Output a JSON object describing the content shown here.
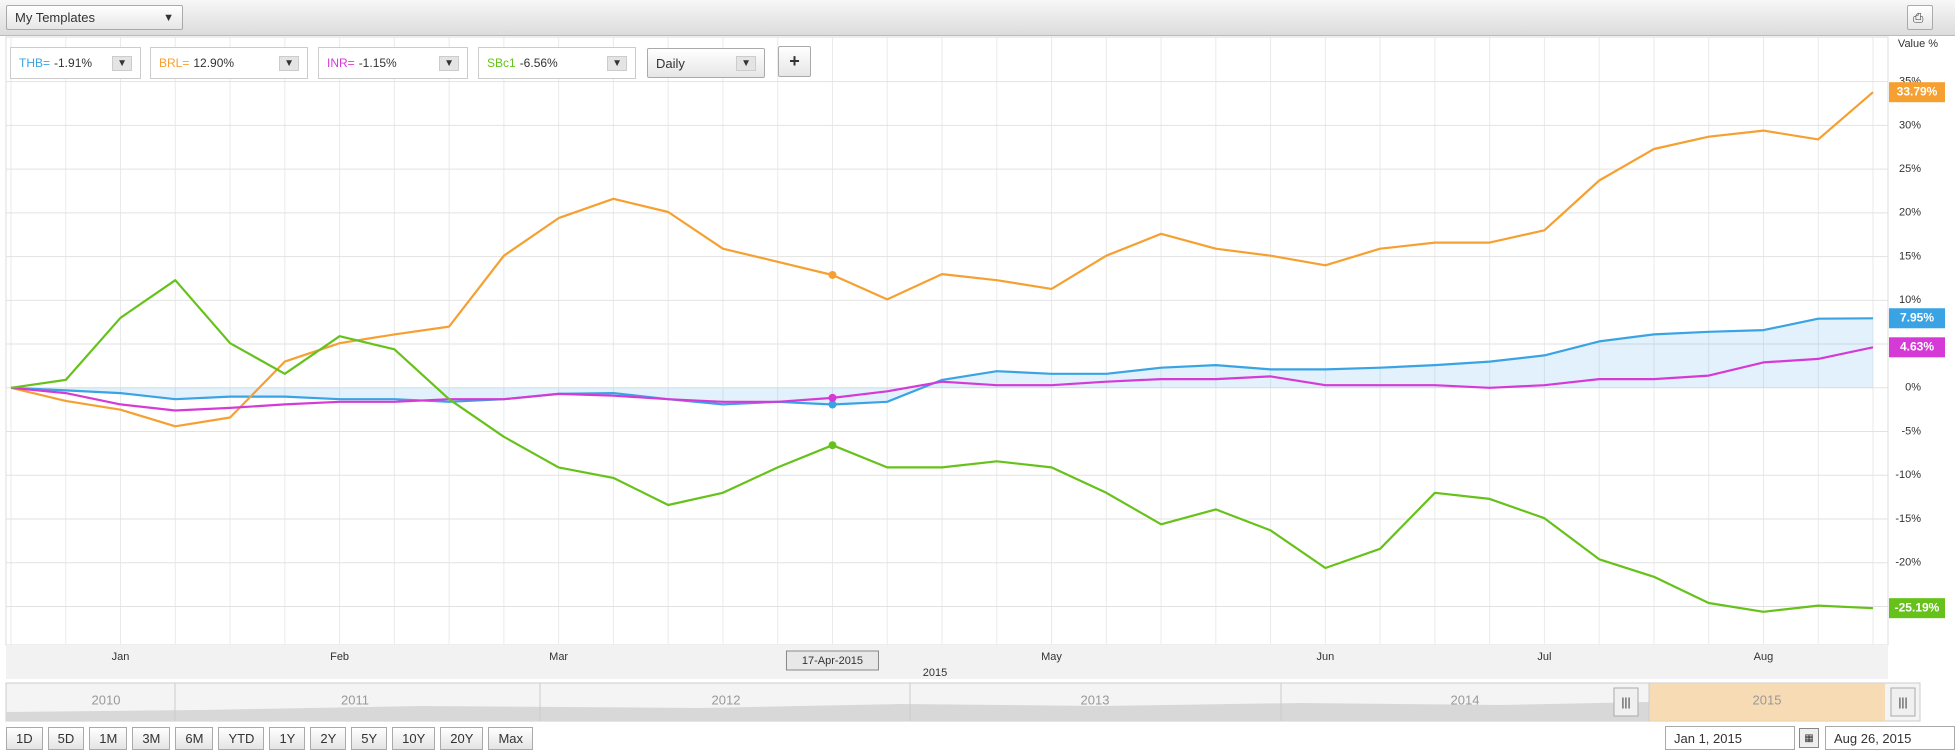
{
  "toolbar": {
    "template": "My Templates"
  },
  "controls": {
    "interval": "Daily",
    "add": "+"
  },
  "chart_data": {
    "type": "line",
    "y_axis_label": "Value %",
    "x_axis_label": "2015",
    "cursor_label": "17-Apr-2015",
    "categories": [
      null,
      null,
      "Jan",
      null,
      null,
      null,
      "Feb",
      null,
      null,
      null,
      "Mar",
      null,
      null,
      null,
      null,
      null,
      null,
      null,
      null,
      "May",
      null,
      null,
      null,
      null,
      "Jun",
      null,
      null,
      null,
      "Jul",
      null,
      null,
      null,
      "Aug",
      null,
      null
    ],
    "series": [
      {
        "name": "THB=",
        "color": "#3aa3e3",
        "legend_value": "-1.91%",
        "end_label": "7.95%",
        "area": true,
        "values": [
          0,
          -0.3,
          -0.6,
          -1.3,
          -1,
          -1,
          -1.3,
          -1.3,
          -1.6,
          -1.3,
          -0.7,
          -0.6,
          -1.3,
          -1.9,
          -1.6,
          -1.91,
          -1.6,
          0.9,
          1.9,
          1.6,
          1.6,
          2.3,
          2.6,
          2.1,
          2.1,
          2.3,
          2.6,
          3,
          3.7,
          5.3,
          6.1,
          6.4,
          6.6,
          7.9,
          7.95
        ]
      },
      {
        "name": "BRL=",
        "color": "#f5a030",
        "legend_value": "12.90%",
        "end_label": "33.79%",
        "values": [
          0,
          -1.5,
          -2.5,
          -4.4,
          -3.4,
          3,
          5.1,
          6.1,
          7,
          15.1,
          19.4,
          21.6,
          20.1,
          15.9,
          14.4,
          12.9,
          10.1,
          13,
          12.3,
          11.3,
          15.1,
          17.6,
          15.9,
          15.1,
          14,
          15.9,
          16.6,
          16.6,
          18,
          23.7,
          27.3,
          28.7,
          29.4,
          28.4,
          33.79
        ]
      },
      {
        "name": "INR=",
        "color": "#d63ad6",
        "legend_value": "-1.15%",
        "end_label": "4.63%",
        "values": [
          0,
          -0.6,
          -1.9,
          -2.6,
          -2.3,
          -1.9,
          -1.6,
          -1.6,
          -1.3,
          -1.3,
          -0.7,
          -0.9,
          -1.3,
          -1.6,
          -1.6,
          -1.15,
          -0.4,
          0.7,
          0.3,
          0.3,
          0.7,
          1,
          1,
          1.3,
          0.3,
          0.3,
          0.3,
          0,
          0.3,
          1,
          1,
          1.4,
          2.9,
          3.3,
          4.63
        ]
      },
      {
        "name": "SBc1",
        "color": "#66c21a",
        "legend_value": "-6.56%",
        "end_label": "-25.19%",
        "values": [
          0,
          0.9,
          8,
          12.3,
          5.1,
          1.6,
          5.9,
          4.4,
          -1.3,
          -5.6,
          -9.1,
          -10.3,
          -13.4,
          -12,
          -9.1,
          -6.56,
          -9.1,
          -9.1,
          -8.4,
          -9.1,
          -12,
          -15.6,
          -13.9,
          -16.3,
          -20.6,
          -18.4,
          -12,
          -12.7,
          -14.9,
          -19.6,
          -21.6,
          -24.6,
          -25.6,
          -24.9,
          -25.19
        ]
      }
    ],
    "ylim": [
      -29.4,
      40.1
    ],
    "yticks": [
      {
        "value": -25,
        "label": "-25%"
      },
      {
        "value": -20,
        "label": "-20%"
      },
      {
        "value": -15,
        "label": "-15%"
      },
      {
        "value": -10,
        "label": "-10%"
      },
      {
        "value": -5,
        "label": "-5%"
      },
      {
        "value": 0,
        "label": "0%"
      },
      {
        "value": 5,
        "label": "5%"
      },
      {
        "value": 10,
        "label": "10%"
      },
      {
        "value": 15,
        "label": "15%"
      },
      {
        "value": 20,
        "label": "20%"
      },
      {
        "value": 25,
        "label": "25%"
      },
      {
        "value": 30,
        "label": "30%"
      },
      {
        "value": 35,
        "label": "35%"
      }
    ],
    "grid": true
  },
  "navigator": {
    "years": [
      "2010",
      "2011",
      "2012",
      "2013",
      "2014",
      "2015"
    ]
  },
  "range_buttons": [
    "1D",
    "5D",
    "1M",
    "3M",
    "6M",
    "YTD",
    "1Y",
    "2Y",
    "5Y",
    "10Y",
    "20Y",
    "Max"
  ],
  "date_range": {
    "from": "Jan 1, 2015",
    "to": "Aug 26, 2015"
  }
}
